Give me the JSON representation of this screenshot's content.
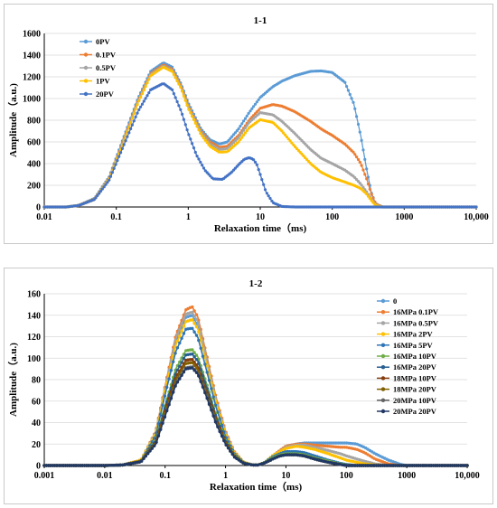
{
  "chart_data": [
    {
      "type": "line",
      "title": "1-1",
      "xlabel": "Relaxation time（ms)",
      "ylabel": "Amplitude（a.u.)",
      "x_scale": "log",
      "xlim": [
        0.01,
        10000
      ],
      "ylim": [
        0,
        1600
      ],
      "x_ticks": [
        0.01,
        0.1,
        1,
        10,
        100,
        1000,
        10000
      ],
      "x_tick_labels": [
        "0.01",
        "0.1",
        "1",
        "10",
        "100",
        "1000",
        "10,000"
      ],
      "y_ticks": [
        0,
        200,
        400,
        600,
        800,
        1000,
        1200,
        1400,
        1600
      ],
      "grid": "horizontal",
      "legend_position": "top-left",
      "series": [
        {
          "name": "0PV",
          "color": "#5B9BD5",
          "x": [
            0.01,
            0.02,
            0.03,
            0.05,
            0.08,
            0.12,
            0.2,
            0.3,
            0.45,
            0.6,
            0.8,
            1,
            1.5,
            2,
            2.7,
            3.5,
            5,
            7,
            10,
            15,
            20,
            30,
            50,
            70,
            100,
            150,
            200,
            250,
            300,
            350,
            400,
            500,
            1000,
            10000
          ],
          "y": [
            0,
            0,
            15,
            80,
            280,
            600,
            1000,
            1250,
            1330,
            1290,
            1130,
            960,
            720,
            620,
            580,
            600,
            720,
            870,
            1010,
            1110,
            1160,
            1210,
            1250,
            1255,
            1240,
            1150,
            950,
            650,
            350,
            130,
            30,
            0,
            0,
            0
          ]
        },
        {
          "name": "0.1PV",
          "color": "#ED7D31",
          "x": [
            0.01,
            0.02,
            0.03,
            0.05,
            0.08,
            0.12,
            0.2,
            0.3,
            0.45,
            0.6,
            0.8,
            1,
            1.5,
            2,
            2.7,
            3.5,
            5,
            7,
            10,
            15,
            20,
            30,
            50,
            70,
            100,
            150,
            200,
            250,
            300,
            350,
            400,
            500,
            1000,
            10000
          ],
          "y": [
            0,
            0,
            15,
            75,
            270,
            580,
            980,
            1230,
            1310,
            1270,
            1110,
            940,
            700,
            600,
            550,
            560,
            660,
            800,
            910,
            945,
            930,
            880,
            790,
            720,
            660,
            580,
            500,
            400,
            260,
            120,
            30,
            0,
            0,
            0
          ]
        },
        {
          "name": "0.5PV",
          "color": "#A5A5A5",
          "x": [
            0.01,
            0.02,
            0.03,
            0.05,
            0.08,
            0.12,
            0.2,
            0.3,
            0.45,
            0.6,
            0.8,
            1,
            1.5,
            2,
            2.7,
            3.5,
            5,
            7,
            10,
            15,
            20,
            30,
            50,
            70,
            100,
            150,
            200,
            250,
            300,
            350,
            400,
            500,
            1000,
            10000
          ],
          "y": [
            0,
            0,
            14,
            72,
            265,
            570,
            970,
            1220,
            1300,
            1260,
            1100,
            930,
            690,
            580,
            530,
            540,
            640,
            780,
            870,
            850,
            790,
            680,
            530,
            450,
            400,
            340,
            280,
            210,
            140,
            70,
            20,
            0,
            0,
            0
          ]
        },
        {
          "name": "1PV",
          "color": "#FFC000",
          "x": [
            0.01,
            0.02,
            0.03,
            0.05,
            0.08,
            0.12,
            0.2,
            0.3,
            0.45,
            0.6,
            0.8,
            1,
            1.5,
            2,
            2.7,
            3.5,
            5,
            7,
            10,
            15,
            20,
            30,
            50,
            70,
            100,
            150,
            200,
            250,
            300,
            350,
            400,
            500,
            1000,
            10000
          ],
          "y": [
            0,
            0,
            14,
            70,
            260,
            560,
            960,
            1210,
            1290,
            1250,
            1090,
            910,
            670,
            560,
            505,
            510,
            600,
            730,
            805,
            780,
            700,
            560,
            400,
            320,
            270,
            230,
            200,
            170,
            120,
            60,
            15,
            0,
            0,
            0
          ]
        },
        {
          "name": "20PV",
          "color": "#4472C4",
          "x": [
            0.01,
            0.02,
            0.03,
            0.05,
            0.08,
            0.12,
            0.2,
            0.3,
            0.45,
            0.6,
            0.8,
            1,
            1.3,
            1.7,
            2.2,
            3,
            4,
            5,
            6,
            7,
            8,
            9,
            10,
            12,
            15,
            20,
            30,
            50,
            100,
            10000
          ],
          "y": [
            0,
            0,
            14,
            70,
            250,
            530,
            880,
            1080,
            1140,
            1080,
            880,
            680,
            480,
            340,
            260,
            255,
            320,
            390,
            440,
            455,
            440,
            390,
            300,
            140,
            40,
            5,
            0,
            0,
            0,
            0
          ]
        }
      ]
    },
    {
      "type": "line",
      "title": "1-2",
      "xlabel": "Relaxation time（ms)",
      "ylabel": "Amplitude（a.u.)",
      "x_scale": "log",
      "xlim": [
        0.001,
        10000
      ],
      "ylim": [
        0,
        160
      ],
      "x_ticks": [
        0.001,
        0.01,
        0.1,
        1,
        10,
        100,
        1000,
        10000
      ],
      "x_tick_labels": [
        "0.001",
        "0.01",
        "0.1",
        "1",
        "10",
        "100",
        "1000",
        "10,000"
      ],
      "y_ticks": [
        0,
        20,
        40,
        60,
        80,
        100,
        120,
        140,
        160
      ],
      "grid": "horizontal",
      "legend_position": "right",
      "peak_x": [
        0.001,
        0.01,
        0.02,
        0.04,
        0.07,
        0.1,
        0.15,
        0.22,
        0.28,
        0.35,
        0.5,
        0.7,
        1,
        1.4,
        2,
        2.8,
        3.5,
        4.5,
        6,
        8,
        10,
        15,
        20,
        30,
        50,
        80,
        100,
        150,
        200,
        300,
        500,
        800,
        1000,
        2000,
        10000
      ],
      "series": [
        {
          "name": "0",
          "color": "#5B9BD5",
          "y": [
            0,
            0,
            0.5,
            5,
            30,
            70,
            115,
            138,
            140,
            130,
            95,
            60,
            30,
            12,
            3,
            0.5,
            0.5,
            3,
            9,
            14,
            18,
            20,
            21,
            21,
            21,
            21,
            21,
            20,
            17,
            11,
            5,
            1,
            0,
            0,
            0
          ]
        },
        {
          "name": "16MPa 0.1PV",
          "color": "#ED7D31",
          "y": [
            0,
            0,
            0.5,
            5,
            32,
            74,
            121,
            145,
            148,
            138,
            100,
            63,
            32,
            13,
            3,
            0.5,
            0.5,
            3,
            9,
            14,
            18,
            20,
            20,
            19,
            18,
            17,
            17,
            15,
            12,
            6,
            1.5,
            0,
            0,
            0,
            0
          ]
        },
        {
          "name": "16MPa 0.5PV",
          "color": "#A5A5A5",
          "y": [
            0,
            0,
            0.5,
            5,
            31,
            72,
            118,
            141,
            143,
            134,
            97,
            61,
            31,
            12,
            3,
            0.5,
            0.5,
            3,
            9,
            13,
            17,
            19,
            19,
            17,
            14,
            11,
            9,
            6,
            4,
            1.5,
            0,
            0,
            0,
            0,
            0
          ]
        },
        {
          "name": "16MPa 2PV",
          "color": "#FFC000",
          "y": [
            0,
            0,
            0.5,
            5,
            30,
            70,
            112,
            134,
            136,
            127,
            92,
            58,
            29,
            12,
            3,
            0.5,
            0.5,
            3,
            9,
            13,
            16,
            18,
            17,
            15,
            11,
            7,
            5,
            3,
            1.5,
            0.5,
            0,
            0,
            0,
            0,
            0
          ]
        },
        {
          "name": "16MPa 5PV",
          "color": "#2E75B6",
          "y": [
            0,
            0,
            0.5,
            4,
            28,
            66,
            106,
            127,
            128,
            119,
            86,
            54,
            27,
            11,
            2.5,
            0.5,
            0.5,
            3,
            8,
            11,
            13,
            13,
            12,
            9,
            5,
            2,
            1,
            0,
            0,
            0,
            0,
            0,
            0,
            0,
            0
          ]
        },
        {
          "name": "16MPa 10PV",
          "color": "#70AD47",
          "y": [
            0,
            0,
            0.5,
            4,
            24,
            56,
            90,
            107,
            108,
            101,
            74,
            47,
            24,
            10,
            2.5,
            0.5,
            0.5,
            3,
            7,
            10,
            11,
            11,
            10,
            7,
            4,
            1.5,
            0.5,
            0,
            0,
            0,
            0,
            0,
            0,
            0,
            0
          ]
        },
        {
          "name": "16MPa 20PV",
          "color": "#255E91",
          "y": [
            0,
            0,
            0.5,
            4,
            23,
            54,
            86,
            103,
            104,
            97,
            71,
            45,
            23,
            9,
            2,
            0.5,
            0.5,
            2.5,
            6,
            9,
            10,
            10,
            9,
            6,
            3,
            1,
            0,
            0,
            0,
            0,
            0,
            0,
            0,
            0,
            0
          ]
        },
        {
          "name": "18MPa 10PV",
          "color": "#843C0C",
          "y": [
            0,
            0,
            0.5,
            4,
            22,
            51,
            82,
            98,
            99,
            92,
            67,
            43,
            22,
            9,
            2,
            0.5,
            0.5,
            2.5,
            6,
            9,
            10,
            10,
            9,
            6,
            3,
            1,
            0,
            0,
            0,
            0,
            0,
            0,
            0,
            0,
            0
          ]
        },
        {
          "name": "18MPa 20PV",
          "color": "#7F6000",
          "y": [
            0,
            0,
            0.5,
            4,
            21,
            49,
            79,
            95,
            96,
            89,
            65,
            41,
            21,
            8.5,
            2,
            0.5,
            0.5,
            2.5,
            6,
            9,
            10,
            10,
            9,
            6,
            3,
            1,
            0,
            0,
            0,
            0,
            0,
            0,
            0,
            0,
            0
          ]
        },
        {
          "name": "20MPa 10PV",
          "color": "#636363",
          "y": [
            0,
            0,
            0.5,
            3.5,
            20,
            47,
            76,
            91,
            92,
            86,
            63,
            40,
            20,
            8,
            2,
            0.5,
            0.5,
            2.5,
            6,
            9,
            10,
            10,
            9,
            6,
            3,
            1,
            0,
            0,
            0,
            0,
            0,
            0,
            0,
            0,
            0
          ]
        },
        {
          "name": "20MPa 20PV",
          "color": "#203864",
          "y": [
            0,
            0,
            0.5,
            3.5,
            20,
            46,
            75,
            90,
            91,
            85,
            62,
            39,
            20,
            8,
            2,
            0.5,
            0.5,
            2.5,
            6,
            9,
            10,
            10,
            9,
            6,
            3,
            1,
            0,
            0,
            0,
            0,
            0,
            0,
            0,
            0,
            0
          ]
        }
      ]
    }
  ]
}
